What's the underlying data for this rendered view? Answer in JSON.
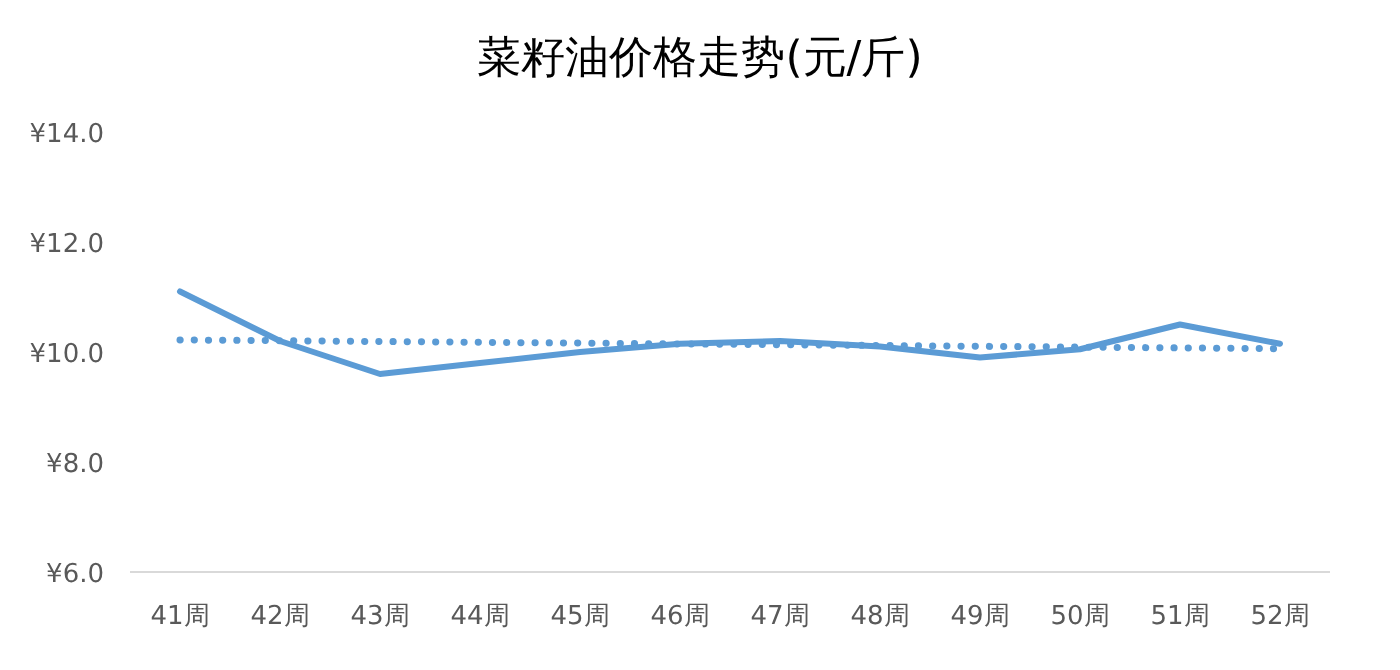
{
  "chart_data": {
    "type": "line",
    "title": "菜籽油价格走势(元/斤)",
    "categories": [
      "41周",
      "42周",
      "43周",
      "44周",
      "45周",
      "46周",
      "47周",
      "48周",
      "49周",
      "50周",
      "51周",
      "52周"
    ],
    "series": [
      {
        "color": "#5b9bd5",
        "values": [
          11.1,
          10.2,
          9.6,
          9.8,
          10.0,
          10.15,
          10.2,
          10.1,
          9.9,
          10.05,
          10.5,
          10.15
        ],
        "line_style": "solid"
      },
      {
        "type": "line",
        "color": "#5b9bd5",
        "x": [
          "41周",
          "52周"
        ],
        "values": [
          10.22,
          10.06
        ],
        "line_style": "dotted"
      }
    ],
    "ylim": [
      6,
      14
    ],
    "yticks": [
      {
        "value": 6,
        "label": "¥6.0"
      },
      {
        "value": 8,
        "label": "¥8.0"
      },
      {
        "value": 10,
        "label": "¥10.0"
      },
      {
        "value": 12,
        "label": "¥12.0"
      },
      {
        "value": 14,
        "label": "¥14.0"
      }
    ],
    "grid": false,
    "marker": "none"
  }
}
